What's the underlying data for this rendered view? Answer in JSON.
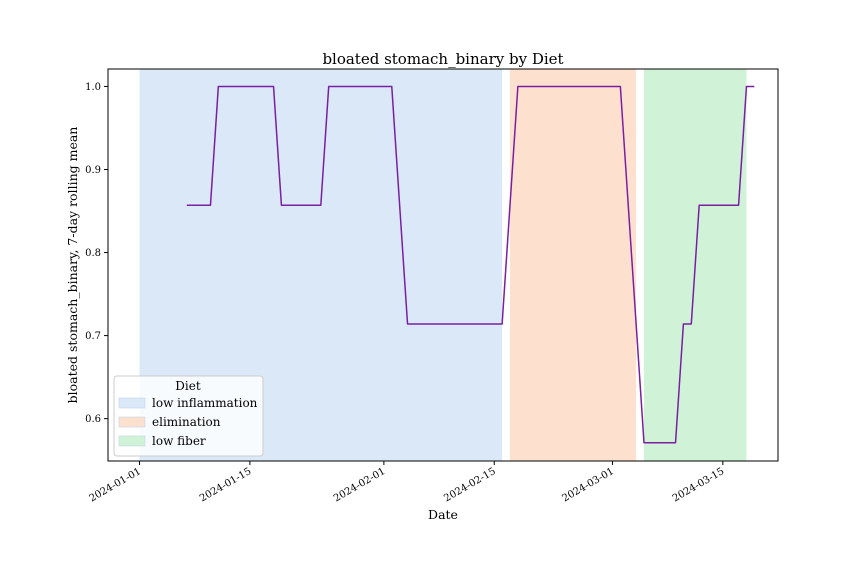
{
  "chart_data": {
    "type": "line",
    "title": "bloated stomach_binary by Diet",
    "xlabel": "Date",
    "ylabel": "bloated stomach_binary, 7-day rolling mean",
    "ylim": [
      0.549,
      1.021
    ],
    "xlim": [
      "2023-12-28",
      "2024-03-22"
    ],
    "y_ticks": [
      0.6,
      0.7,
      0.8,
      0.9,
      1.0
    ],
    "y_tick_labels": [
      "0.6",
      "0.7",
      "0.8",
      "0.9",
      "1.0"
    ],
    "x_ticks": [
      "2024-01-01",
      "2024-01-15",
      "2024-02-01",
      "2024-02-15",
      "2024-03-01",
      "2024-03-15"
    ],
    "x_tick_labels": [
      "2024-01-01",
      "2024-01-15",
      "2024-02-01",
      "2024-02-15",
      "2024-03-01",
      "2024-03-15"
    ],
    "grid": false,
    "legend": {
      "title": "Diet",
      "placement": "lower-left",
      "entries": [
        "low inflammation",
        "elimination",
        "low fiber"
      ]
    },
    "bands": [
      {
        "label": "low inflammation",
        "start": "2024-01-01",
        "end": "2024-02-16",
        "color": "#dae8f8"
      },
      {
        "label": "elimination",
        "start": "2024-02-17",
        "end": "2024-03-04",
        "color": "#fee0cf"
      },
      {
        "label": "low fiber",
        "start": "2024-03-05",
        "end": "2024-03-18",
        "color": "#d0f3d8"
      }
    ],
    "series": [
      {
        "color": "#7a1fa2",
        "points": [
          [
            "2024-01-07",
            0.857
          ],
          [
            "2024-01-10",
            0.857
          ],
          [
            "2024-01-11",
            1.0
          ],
          [
            "2024-01-18",
            1.0
          ],
          [
            "2024-01-19",
            0.857
          ],
          [
            "2024-01-24",
            0.857
          ],
          [
            "2024-01-25",
            1.0
          ],
          [
            "2024-02-02",
            1.0
          ],
          [
            "2024-02-04",
            0.714
          ],
          [
            "2024-02-16",
            0.714
          ],
          [
            "2024-02-18",
            1.0
          ],
          [
            "2024-03-02",
            1.0
          ],
          [
            "2024-03-04",
            0.714
          ],
          [
            "2024-03-05",
            0.571
          ],
          [
            "2024-03-09",
            0.571
          ],
          [
            "2024-03-10",
            0.714
          ],
          [
            "2024-03-11",
            0.714
          ],
          [
            "2024-03-12",
            0.857
          ],
          [
            "2024-03-17",
            0.857
          ],
          [
            "2024-03-18",
            1.0
          ],
          [
            "2024-03-19",
            1.0
          ]
        ]
      }
    ]
  }
}
